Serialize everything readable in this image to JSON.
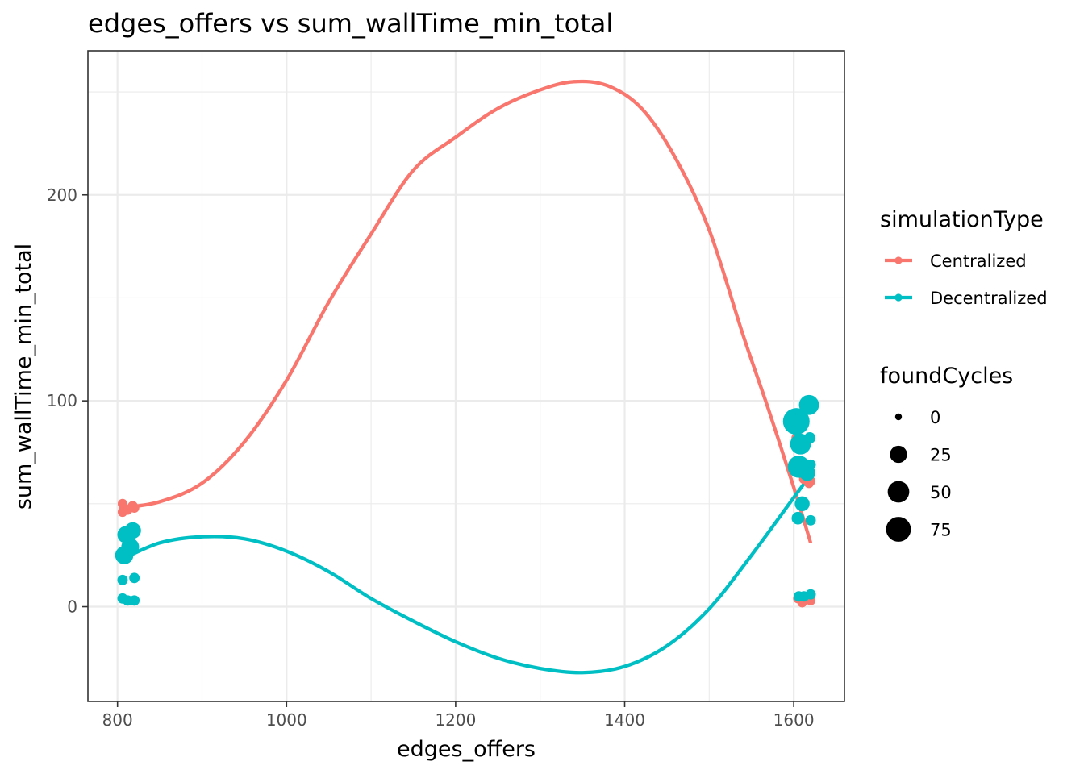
{
  "chart_data": {
    "type": "scatter",
    "title": "edges_offers  vs  sum_wallTime_min_total",
    "xlabel": "edges_offers",
    "ylabel": "sum_wallTime_min_total",
    "xlim": [
      765,
      1660
    ],
    "ylim": [
      -46,
      270
    ],
    "x_ticks": [
      800,
      1000,
      1200,
      1400,
      1600
    ],
    "x_tick_labels": [
      "800",
      "1000",
      "1200",
      "1400",
      "1600"
    ],
    "x_minor_ticks": [
      900,
      1100,
      1300,
      1500
    ],
    "y_ticks": [
      0,
      100,
      200
    ],
    "y_tick_labels": [
      "0",
      "100",
      "200"
    ],
    "y_minor_ticks": [
      50,
      150,
      250
    ],
    "grid": true,
    "legend": {
      "placement": "right",
      "color_title": "simulationType",
      "size_title": "foundCycles",
      "size_breaks": [
        0,
        25,
        50,
        75
      ],
      "size_labels": [
        "0",
        "25",
        "50",
        "75"
      ],
      "size_range": [
        0,
        90
      ]
    },
    "series": [
      {
        "name": "Centralized",
        "color": "#F8766D",
        "points": [
          {
            "x": 806,
            "y": 50,
            "size": 2
          },
          {
            "x": 806,
            "y": 46,
            "size": 2
          },
          {
            "x": 808,
            "y": 48,
            "size": 2
          },
          {
            "x": 812,
            "y": 47,
            "size": 2
          },
          {
            "x": 818,
            "y": 49,
            "size": 2
          },
          {
            "x": 820,
            "y": 48,
            "size": 2
          },
          {
            "x": 1603,
            "y": 82,
            "size": 2
          },
          {
            "x": 1605,
            "y": 4,
            "size": 2
          },
          {
            "x": 1610,
            "y": 2,
            "size": 2
          },
          {
            "x": 1612,
            "y": 62,
            "size": 2
          },
          {
            "x": 1618,
            "y": 60,
            "size": 2
          },
          {
            "x": 1620,
            "y": 3,
            "size": 2
          },
          {
            "x": 1620,
            "y": 61,
            "size": 2
          }
        ],
        "smooth": {
          "x": [
            805,
            850,
            900,
            950,
            1000,
            1050,
            1100,
            1150,
            1200,
            1250,
            1300,
            1340,
            1380,
            1420,
            1460,
            1500,
            1540,
            1570,
            1600,
            1620
          ],
          "y": [
            48,
            51,
            60,
            80,
            110,
            148,
            181,
            212,
            228,
            242,
            251,
            255,
            253,
            242,
            218,
            183,
            132,
            96,
            58,
            31
          ]
        }
      },
      {
        "name": "Decentralized",
        "color": "#00BFC4",
        "points": [
          {
            "x": 806,
            "y": 13,
            "size": 3
          },
          {
            "x": 806,
            "y": 4,
            "size": 3
          },
          {
            "x": 808,
            "y": 25,
            "size": 30
          },
          {
            "x": 810,
            "y": 35,
            "size": 25
          },
          {
            "x": 812,
            "y": 3,
            "size": 3
          },
          {
            "x": 815,
            "y": 29,
            "size": 28
          },
          {
            "x": 818,
            "y": 37,
            "size": 22
          },
          {
            "x": 820,
            "y": 14,
            "size": 3
          },
          {
            "x": 820,
            "y": 3,
            "size": 3
          },
          {
            "x": 1603,
            "y": 90,
            "size": 90
          },
          {
            "x": 1605,
            "y": 43,
            "size": 8
          },
          {
            "x": 1606,
            "y": 68,
            "size": 55
          },
          {
            "x": 1606,
            "y": 5,
            "size": 3
          },
          {
            "x": 1608,
            "y": 79,
            "size": 45
          },
          {
            "x": 1610,
            "y": 50,
            "size": 15
          },
          {
            "x": 1612,
            "y": 5,
            "size": 3
          },
          {
            "x": 1616,
            "y": 65,
            "size": 20
          },
          {
            "x": 1618,
            "y": 98,
            "size": 40
          },
          {
            "x": 1619,
            "y": 82,
            "size": 5
          },
          {
            "x": 1620,
            "y": 69,
            "size": 3
          },
          {
            "x": 1620,
            "y": 42,
            "size": 3
          },
          {
            "x": 1620,
            "y": 6,
            "size": 3
          }
        ],
        "smooth": {
          "x": [
            805,
            850,
            900,
            950,
            1000,
            1050,
            1100,
            1150,
            1200,
            1250,
            1300,
            1350,
            1400,
            1450,
            1500,
            1550,
            1600,
            1620
          ],
          "y": [
            23,
            31,
            34,
            33,
            27,
            17,
            4,
            -7,
            -17,
            -25,
            -30,
            -32,
            -29,
            -19,
            -1,
            25,
            53,
            64
          ]
        }
      }
    ]
  }
}
